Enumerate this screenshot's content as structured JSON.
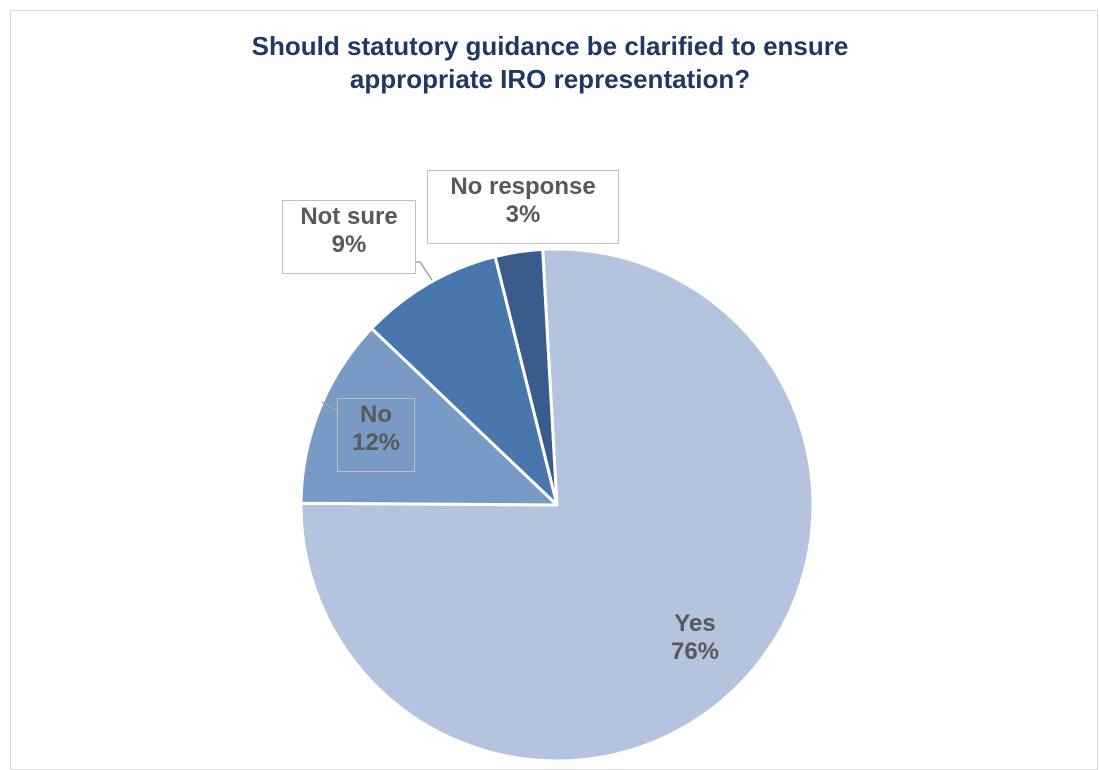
{
  "chart_data": {
    "type": "pie",
    "title_lines": [
      "Should statutory guidance be clarified to ensure",
      "appropriate IRO representation?"
    ],
    "categories": [
      "No response",
      "Yes",
      "No",
      "Not sure"
    ],
    "values": [
      3,
      76,
      12,
      9
    ],
    "labels": [
      "3%",
      "76%",
      "12%",
      "9%"
    ],
    "colors": [
      "#3a5b8c",
      "#b4c3de",
      "#7a9ac6",
      "#4777ad"
    ],
    "legend": "none"
  }
}
